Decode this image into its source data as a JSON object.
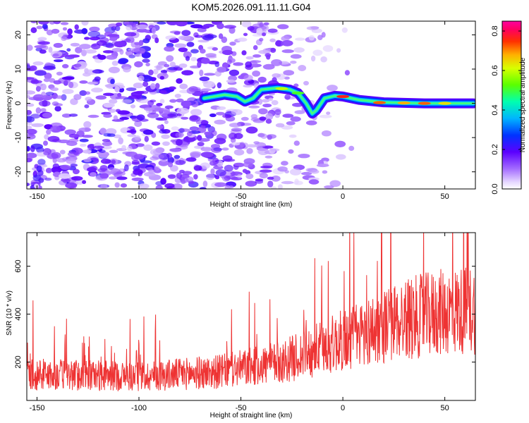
{
  "chart_data": [
    {
      "type": "heatmap",
      "title": "KOM5.2026.091.11.11.G04",
      "xlabel": "Height of straight line (km)",
      "ylabel": "Frequency (Hz)",
      "xlim": [
        -155,
        65
      ],
      "ylim": [
        -25,
        24
      ],
      "xticks": [
        -150,
        -100,
        -50,
        0,
        50
      ],
      "yticks": [
        -20,
        -10,
        0,
        10,
        20
      ],
      "colorbar": {
        "label": "Normalized spectral amplitude",
        "range": [
          0.0,
          0.85
        ],
        "ticks": [
          "0.0",
          "0.2",
          "0.4",
          "0.6",
          "0.8"
        ]
      },
      "ridge": {
        "description_values": [
          {
            "x": -68,
            "y": 1.5
          },
          {
            "x": -58,
            "y": 2.5
          },
          {
            "x": -52,
            "y": 2.0
          },
          {
            "x": -48,
            "y": 0.5
          },
          {
            "x": -44,
            "y": 1.5
          },
          {
            "x": -40,
            "y": 4.0
          },
          {
            "x": -32,
            "y": 4.5
          },
          {
            "x": -26,
            "y": 4.0
          },
          {
            "x": -22,
            "y": 3.0
          },
          {
            "x": -18,
            "y": 0.0
          },
          {
            "x": -15,
            "y": -3.0
          },
          {
            "x": -13,
            "y": -2.0
          },
          {
            "x": -9,
            "y": 1.5
          },
          {
            "x": -4,
            "y": 2.2
          },
          {
            "x": 0,
            "y": 2.0
          },
          {
            "x": 8,
            "y": 1.0
          },
          {
            "x": 20,
            "y": 0.3
          },
          {
            "x": 40,
            "y": 0.0
          },
          {
            "x": 64,
            "y": 0.0
          }
        ]
      }
    },
    {
      "type": "line",
      "xlabel": "Height of straight line (km)",
      "ylabel": "SNR (10 * v/v)",
      "xlim": [
        -155,
        65
      ],
      "ylim": [
        40,
        740
      ],
      "xticks": [
        -150,
        -100,
        -50,
        0,
        50
      ],
      "yticks": [
        200,
        400,
        600
      ],
      "series": [
        {
          "name": "SNR",
          "color": "#ee3333",
          "trend": [
            {
              "x": -155,
              "y": 150
            },
            {
              "x": -100,
              "y": 140
            },
            {
              "x": -60,
              "y": 160
            },
            {
              "x": -30,
              "y": 200
            },
            {
              "x": -10,
              "y": 260
            },
            {
              "x": 10,
              "y": 320
            },
            {
              "x": 30,
              "y": 380
            },
            {
              "x": 50,
              "y": 410
            },
            {
              "x": 65,
              "y": 420
            }
          ]
        }
      ]
    }
  ]
}
